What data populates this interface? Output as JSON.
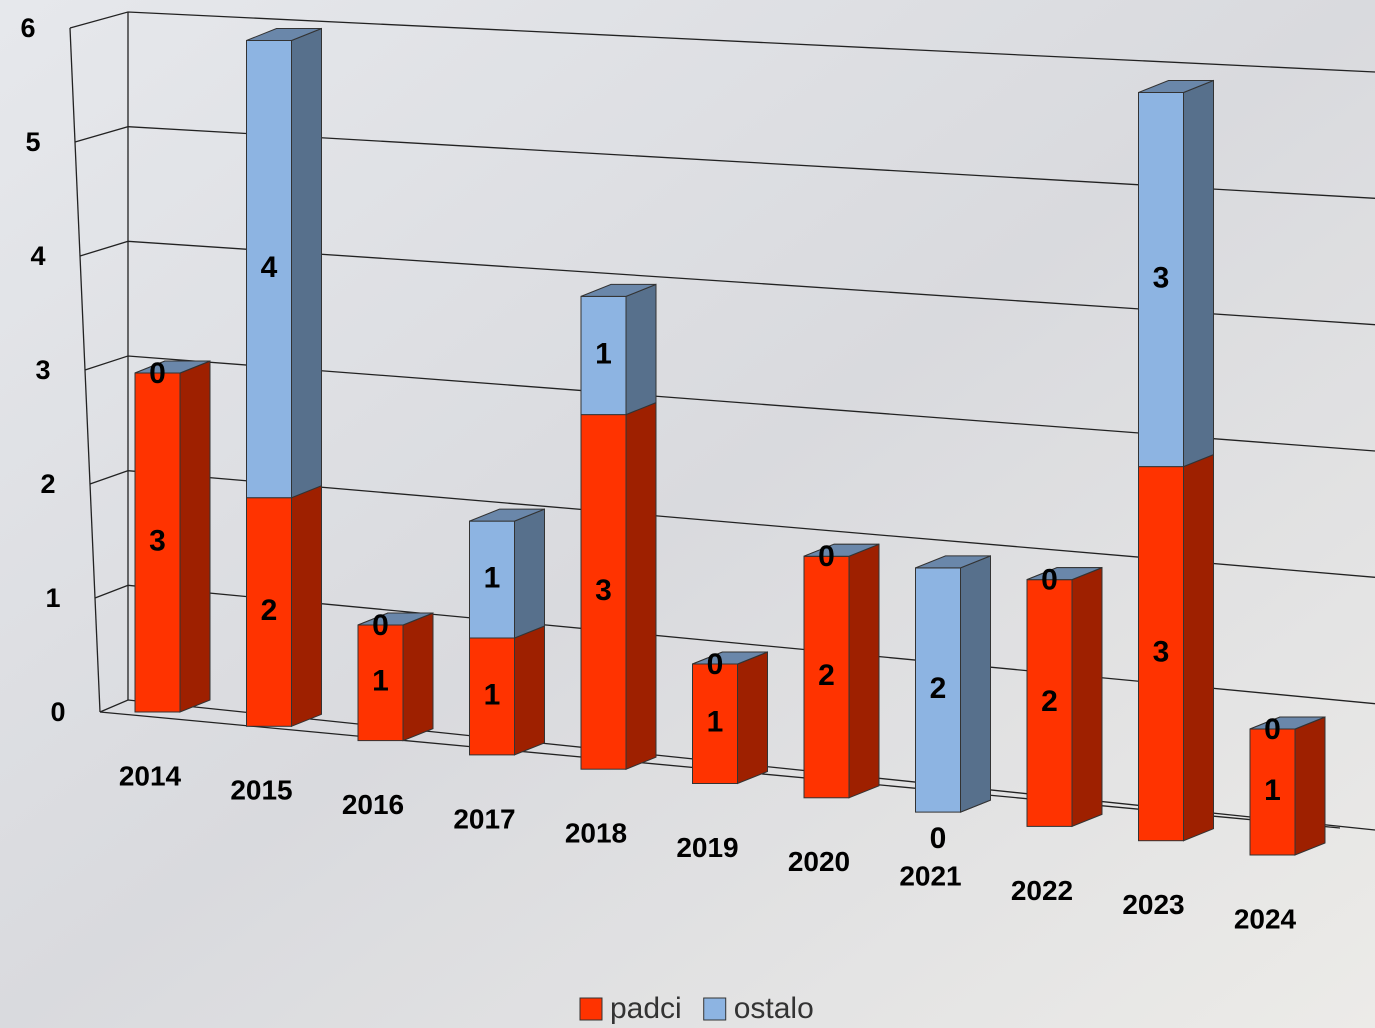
{
  "chart_data": {
    "type": "bar3d_stacked",
    "categories": [
      "2014",
      "2015",
      "2016",
      "2017",
      "2018",
      "2019",
      "2020",
      "2021",
      "2022",
      "2023",
      "2024"
    ],
    "series": [
      {
        "name": "padci",
        "color": "#ff3300",
        "values": [
          3,
          2,
          1,
          1,
          3,
          1,
          2,
          0,
          2,
          3,
          1
        ]
      },
      {
        "name": "ostalo",
        "color": "#8db4e2",
        "values": [
          0,
          4,
          0,
          1,
          1,
          0,
          0,
          2,
          0,
          3,
          0
        ]
      }
    ],
    "ylim": [
      0,
      6
    ],
    "yticks": [
      0,
      1,
      2,
      3,
      4,
      5,
      6
    ],
    "grid": true,
    "legend": "bottom"
  }
}
